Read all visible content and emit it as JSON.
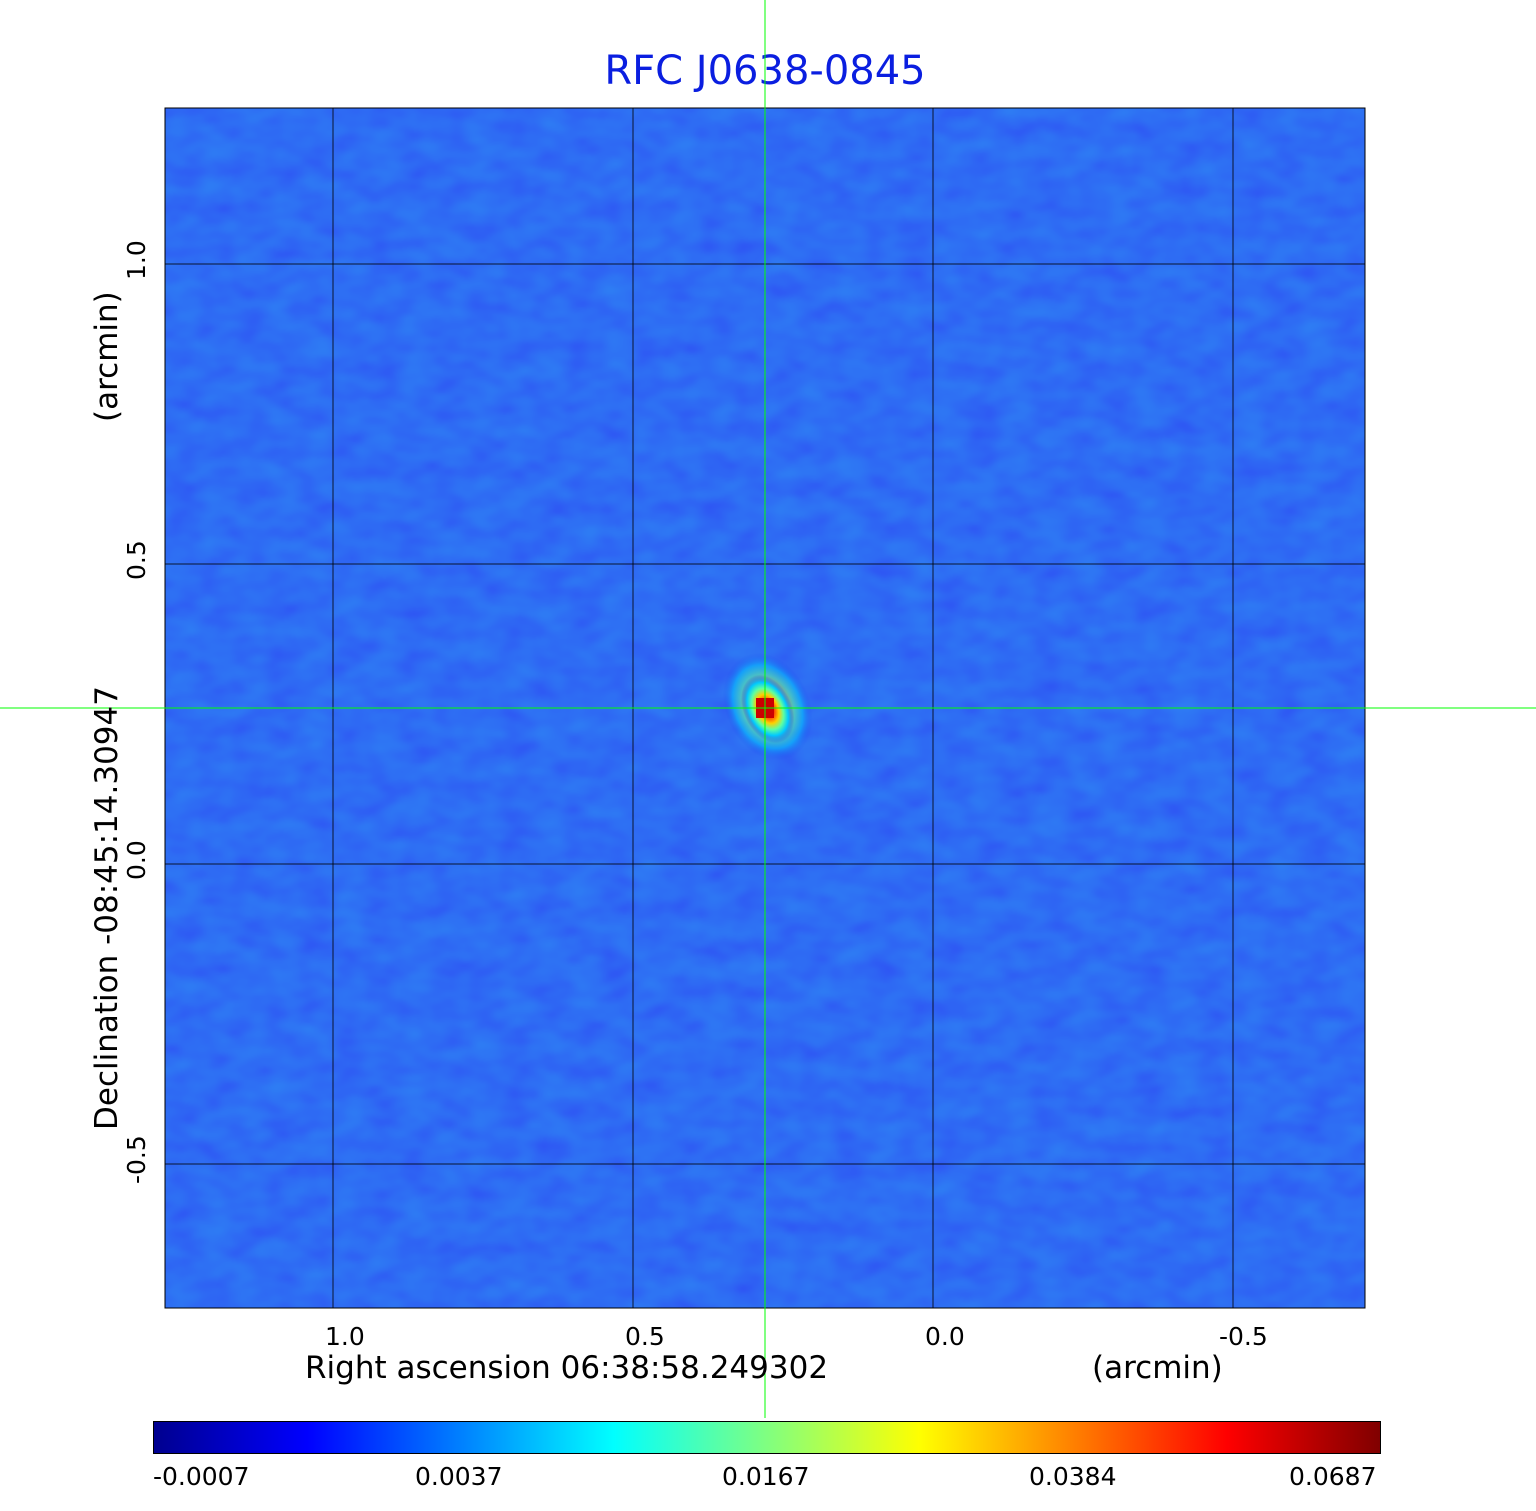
{
  "chart_data": {
    "type": "heatmap",
    "title": "RFC J0638-0845",
    "xlabel": "Right ascension  06:38:58.249302",
    "xunit": "(arcmin)",
    "ylabel": "Declination  -08:45:14.30947",
    "yunit": "(arcmin)",
    "x_ticks": [
      "1.0",
      "0.5",
      "0.0",
      "-0.5"
    ],
    "y_ticks": [
      "1.0",
      "0.5",
      "0.0",
      "-0.5"
    ],
    "xlim": [
      1.28,
      -0.72
    ],
    "ylim": [
      -0.74,
      1.26
    ],
    "grid": true,
    "crosshair": {
      "x": 0.28,
      "y": 0.26
    },
    "source_peak": {
      "x": 0.28,
      "y": 0.26,
      "value": 0.0687
    },
    "colorbar": {
      "ticks": [
        "-0.0007",
        "0.0037",
        "0.0167",
        "0.0384",
        "0.0687"
      ],
      "colormap": [
        "#00008f",
        "#0000ff",
        "#0080ff",
        "#00ffff",
        "#80ff80",
        "#ffff00",
        "#ff8000",
        "#ff0000",
        "#800000"
      ]
    },
    "background_color": "#1a3df0",
    "grid_color": "#000000",
    "crosshair_color": "#00ff00"
  }
}
